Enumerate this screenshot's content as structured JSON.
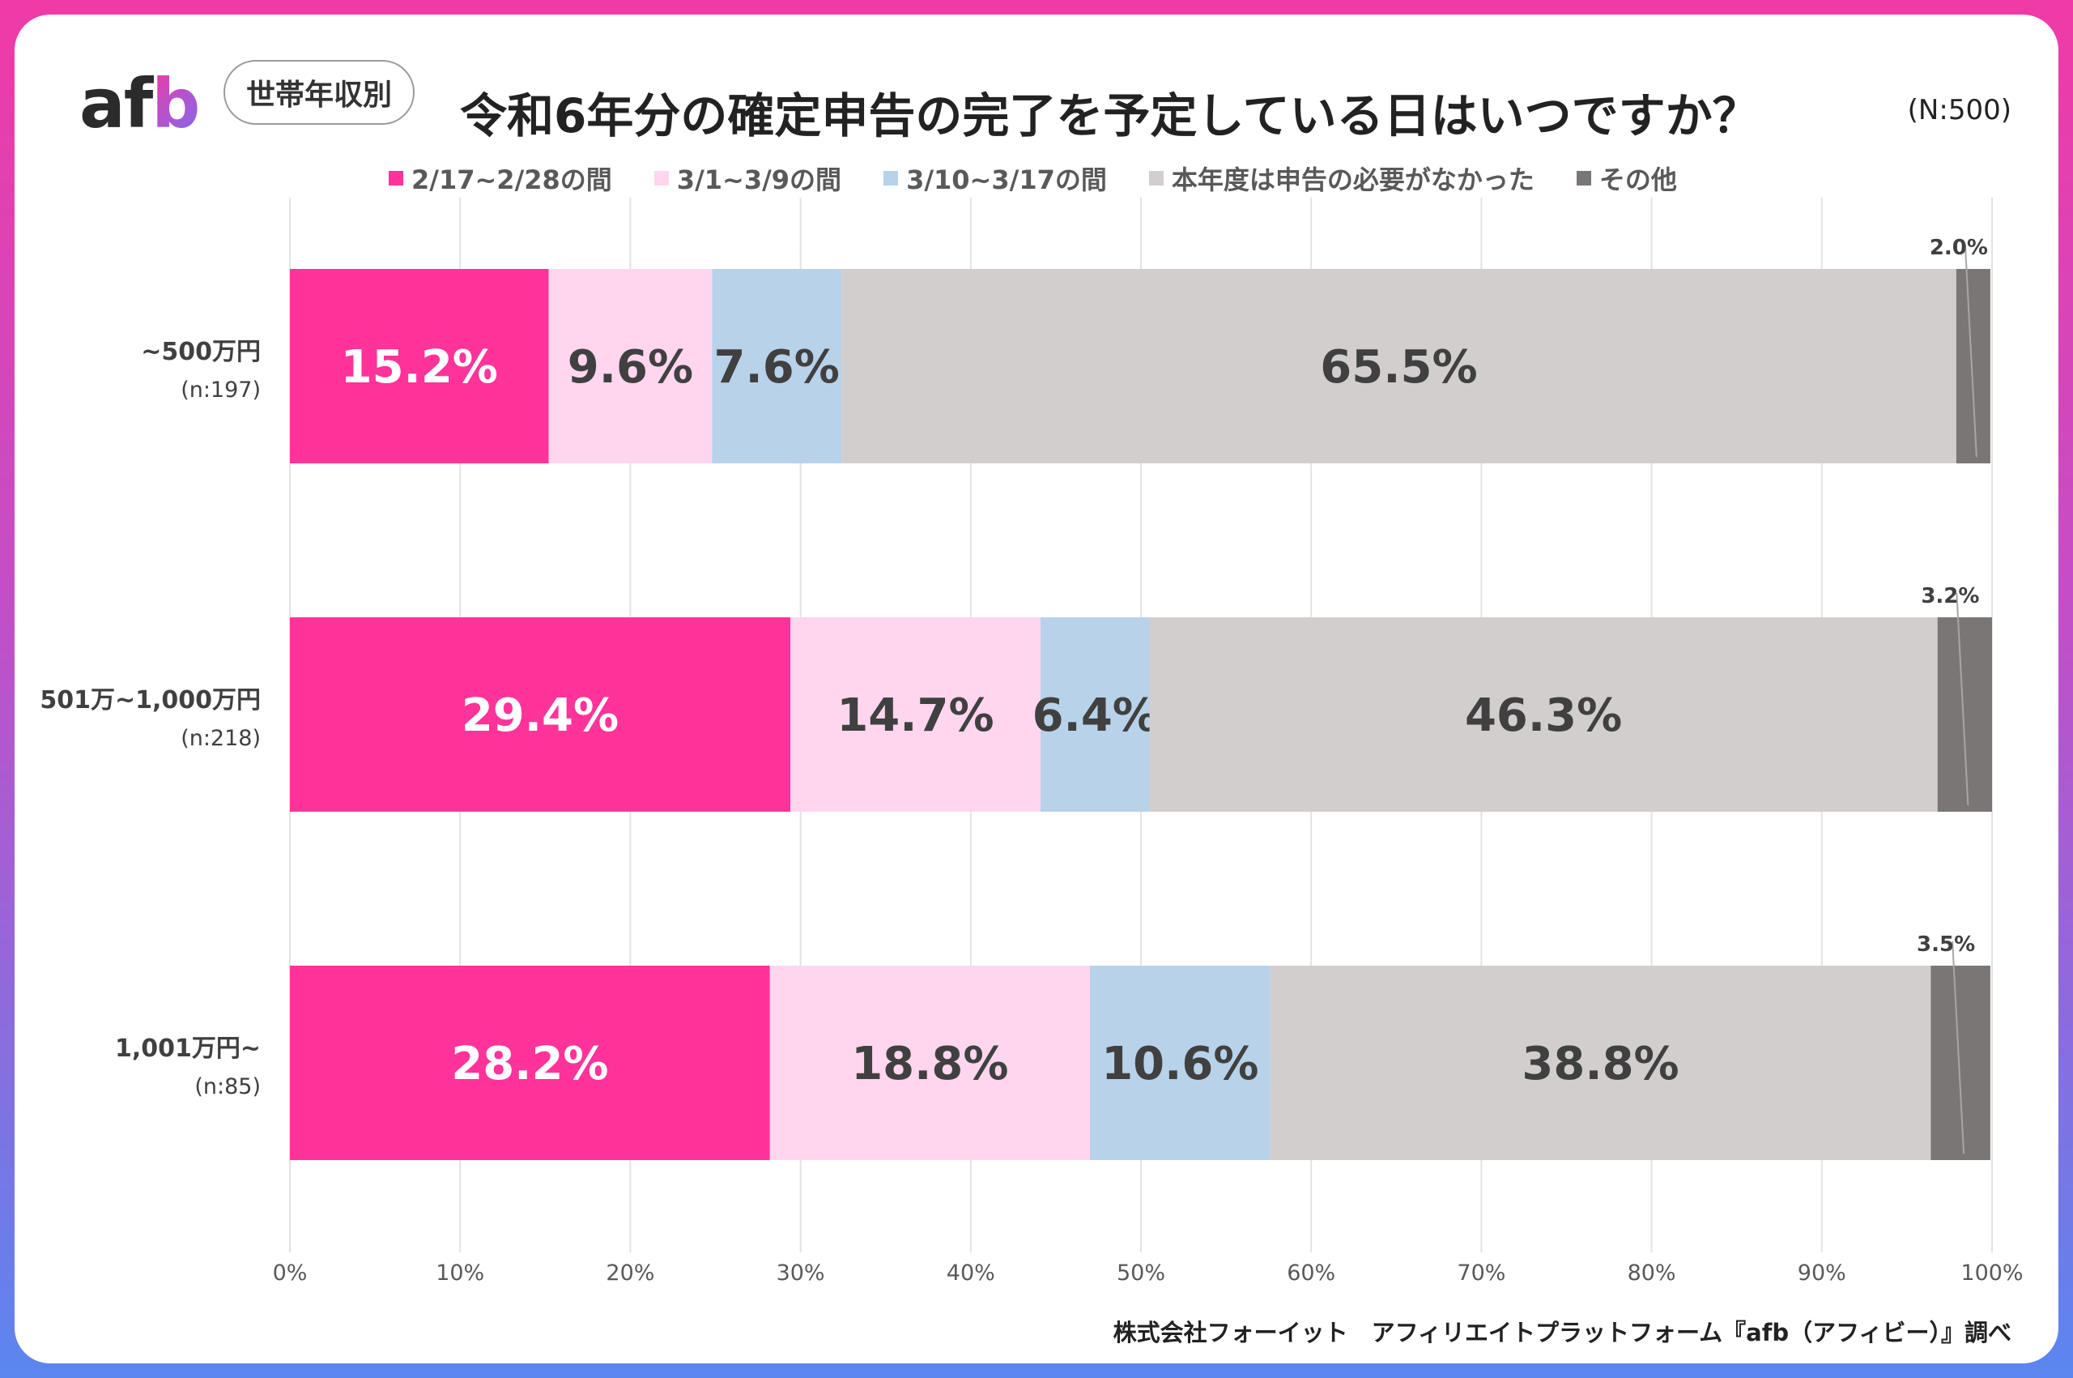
{
  "header": {
    "logo": {
      "a": "a",
      "f": "f",
      "b": "b"
    },
    "tag": "世帯年収別",
    "title": "令和6年分の確定申告の完了を予定している日はいつですか？",
    "n_total": "(N:500)"
  },
  "source": "株式会社フォーイット　アフィリエイトプラットフォーム『afb（アフィビー）』調べ",
  "colors": {
    "series": [
      "#ff3399",
      "#ffd6ee",
      "#b8d2ea",
      "#d3cece",
      "#7b7676"
    ],
    "label_light": "#ffffff",
    "label_dark": "#404040",
    "grid": "#e3e3e3",
    "frame_top": "#f03aa6",
    "frame_bottom": "#5b86f0"
  },
  "chart_data": {
    "type": "bar",
    "orientation": "horizontal",
    "stacked": true,
    "categories": [
      {
        "label": "~500万円",
        "sub": "(n:197)"
      },
      {
        "label": "501万~1,000万円",
        "sub": "(n:218)"
      },
      {
        "label": "1,001万円~",
        "sub": "(n:85)"
      }
    ],
    "series": [
      {
        "name": "2/17~2/28の間",
        "values": [
          15.2,
          29.4,
          28.2
        ]
      },
      {
        "name": "3/1~3/9の間",
        "values": [
          9.6,
          14.7,
          18.8
        ]
      },
      {
        "name": "3/10~3/17の間",
        "values": [
          7.6,
          6.4,
          10.6
        ]
      },
      {
        "name": "本年度は申告の必要がなかった",
        "values": [
          65.5,
          46.3,
          38.8
        ]
      },
      {
        "name": "その他",
        "values": [
          2.0,
          3.2,
          3.5
        ]
      }
    ],
    "data_labels": [
      [
        "15.2%",
        "9.6%",
        "7.6%",
        "65.5%",
        "2.0%"
      ],
      [
        "29.4%",
        "14.7%",
        "6.4%",
        "46.3%",
        "3.2%"
      ],
      [
        "28.2%",
        "18.8%",
        "10.6%",
        "38.8%",
        "3.5%"
      ]
    ],
    "xlim": [
      0,
      100
    ],
    "xticks": [
      "0%",
      "10%",
      "20%",
      "30%",
      "40%",
      "50%",
      "60%",
      "70%",
      "80%",
      "90%",
      "100%"
    ],
    "grid": true,
    "legend_position": "top"
  }
}
